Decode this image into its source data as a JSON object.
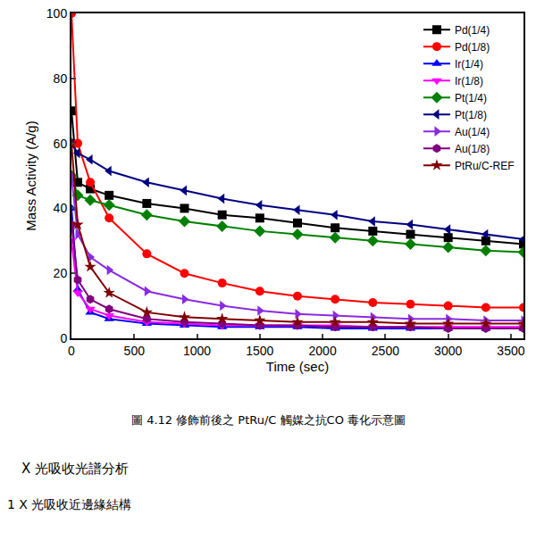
{
  "chart_data": {
    "type": "line",
    "x_label": "Time (sec)",
    "y_label": "Mass Activity (A/g)",
    "x": [
      0,
      50,
      150,
      300,
      600,
      900,
      1200,
      1500,
      1800,
      2100,
      2400,
      2700,
      3000,
      3300,
      3600
    ],
    "xlim": [
      0,
      3600
    ],
    "xticks": [
      0,
      500,
      1000,
      1500,
      2000,
      2500,
      3000,
      3500
    ],
    "ylim": [
      0,
      100
    ],
    "yticks": [
      0,
      20,
      40,
      60,
      80,
      100
    ],
    "grid": false,
    "legend": "top-right",
    "series": [
      {
        "name": "Pd(1/4)",
        "color": "#000000",
        "marker": "square",
        "values": [
          70,
          48,
          46,
          44,
          41.5,
          40,
          38,
          37,
          35.5,
          34,
          33,
          32,
          31,
          30,
          29
        ]
      },
      {
        "name": "Pd(1/8)",
        "color": "#ff0000",
        "marker": "circle",
        "values": [
          100,
          60,
          48,
          37,
          26,
          20,
          17,
          14.5,
          13,
          12,
          11,
          10.5,
          10,
          9.5,
          9.5
        ]
      },
      {
        "name": "Ir(1/4)",
        "color": "#0000ff",
        "marker": "triangle-up",
        "values": [
          40,
          15,
          8,
          6,
          4.5,
          4,
          3.5,
          3.5,
          3.5,
          3,
          3,
          3,
          3,
          3,
          3
        ]
      },
      {
        "name": "Ir(1/8)",
        "color": "#ff00ff",
        "marker": "triangle-down",
        "values": [
          30,
          14,
          9,
          7,
          5,
          4.5,
          4,
          4,
          4,
          4,
          3.5,
          3.5,
          3.5,
          3.5,
          3.5
        ]
      },
      {
        "name": "Pt(1/4)",
        "color": "#008000",
        "marker": "diamond",
        "values": [
          50,
          44,
          42.5,
          41,
          38,
          36,
          34.5,
          33,
          32,
          31,
          30,
          29,
          28,
          27,
          26.5
        ]
      },
      {
        "name": "Pt(1/8)",
        "color": "#000080",
        "marker": "triangle-left",
        "values": [
          60,
          57,
          55,
          51.5,
          48,
          45.5,
          43,
          41,
          39.5,
          38,
          36,
          35,
          33.5,
          32,
          30.5
        ]
      },
      {
        "name": "Au(1/4)",
        "color": "#8a2be2",
        "marker": "triangle-right",
        "values": [
          50,
          32,
          25,
          21,
          14.5,
          12,
          10,
          8.5,
          7.5,
          7,
          6.5,
          6,
          6,
          5.5,
          5.5
        ]
      },
      {
        "name": "Au(1/8)",
        "color": "#800080",
        "marker": "hexagon",
        "values": [
          35,
          18,
          12,
          9,
          6,
          5,
          4.5,
          4,
          4,
          3.5,
          3.5,
          3.5,
          3,
          3,
          3
        ]
      },
      {
        "name": "PtRu/C-REF",
        "color": "#800000",
        "marker": "star",
        "values": [
          60,
          35,
          22,
          14,
          8,
          6.5,
          6,
          5.5,
          5,
          5,
          5,
          4.5,
          4.5,
          4.5,
          4.5
        ]
      }
    ],
    "annotations": [
      "圖 4.12 修飾前後之 PtRu/C 觸媒之抗CO 毒化示意圖",
      "X 光吸收光譜分析",
      "1 X 光吸收近邊緣結構"
    ]
  }
}
